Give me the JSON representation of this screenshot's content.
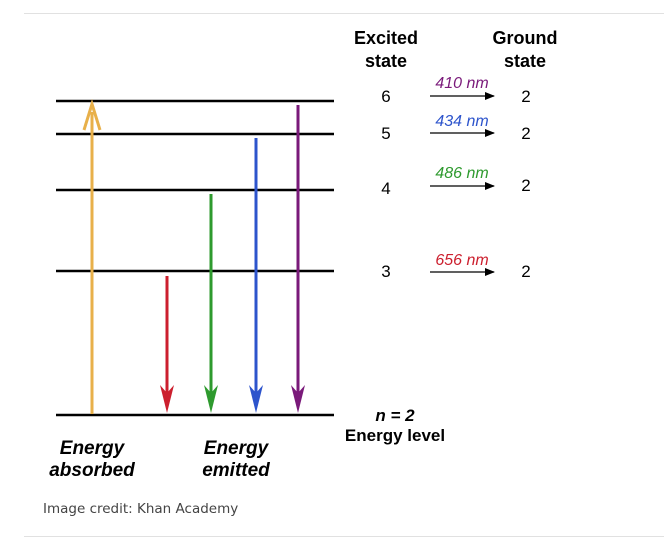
{
  "header": {
    "excited_title": "Excited",
    "excited_sub": "state",
    "ground_title": "Ground",
    "ground_sub": "state"
  },
  "transitions": [
    {
      "excited": "6",
      "wavelength": "410 nm",
      "ground": "2",
      "color": "#7a1a7a"
    },
    {
      "excited": "5",
      "wavelength": "434 nm",
      "ground": "2",
      "color": "#2d54cc"
    },
    {
      "excited": "4",
      "wavelength": "486 nm",
      "ground": "2",
      "color": "#2e9a2e"
    },
    {
      "excited": "3",
      "wavelength": "656 nm",
      "ground": "2",
      "color": "#cc1f2e"
    }
  ],
  "ground_level": {
    "label": "n = 2",
    "sublabel": "Energy level"
  },
  "absorbed_label": {
    "line1": "Energy",
    "line2": "absorbed",
    "color": "#e8b04a"
  },
  "emitted_label": {
    "line1": "Energy",
    "line2": "emitted"
  },
  "caption": "Image credit: Khan Academy"
}
